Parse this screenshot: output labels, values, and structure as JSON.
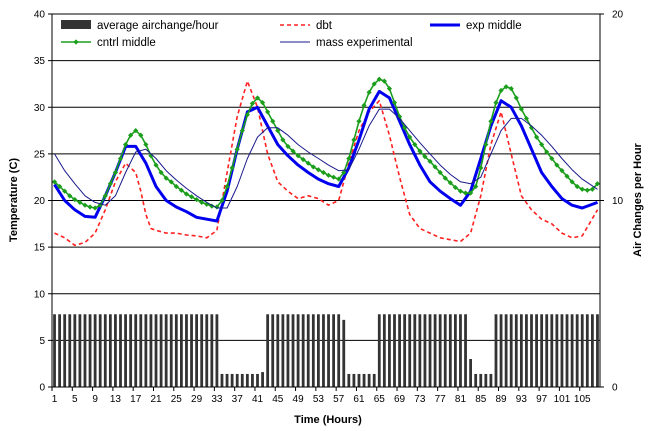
{
  "chart_data": {
    "type": "line",
    "xlabel": "Time (Hours)",
    "ylabel": "Temperature (C)",
    "y2label": "Air Changes per Hour",
    "xlim": [
      1,
      108
    ],
    "ylim": [
      0,
      40
    ],
    "y2lim": [
      0,
      20
    ],
    "y_ticks": [
      "0",
      "5",
      "10",
      "15",
      "20",
      "25",
      "30",
      "35",
      "40"
    ],
    "y2_ticks": [
      "0",
      "10",
      "20"
    ],
    "x_ticks": [
      "1",
      "5",
      "9",
      "13",
      "17",
      "21",
      "25",
      "29",
      "33",
      "37",
      "41",
      "45",
      "49",
      "53",
      "57",
      "61",
      "65",
      "69",
      "73",
      "77",
      "81",
      "85",
      "89",
      "93",
      "97",
      "101",
      "105"
    ],
    "grid": "horizontal at major temperature ticks",
    "legend_position": "top-left, inside plot",
    "series": [
      {
        "name": "average airchange/hour",
        "kind": "bar",
        "axis": "secondary",
        "color": "#333333",
        "x": [
          1,
          2,
          3,
          4,
          5,
          6,
          7,
          8,
          9,
          10,
          11,
          12,
          13,
          14,
          15,
          16,
          17,
          18,
          19,
          20,
          21,
          22,
          23,
          24,
          25,
          26,
          27,
          28,
          29,
          30,
          31,
          32,
          33,
          34,
          35,
          36,
          37,
          38,
          39,
          40,
          41,
          42,
          43,
          44,
          45,
          46,
          47,
          48,
          49,
          50,
          51,
          52,
          53,
          54,
          55,
          56,
          57,
          58,
          59,
          60,
          61,
          62,
          63,
          64,
          65,
          66,
          67,
          68,
          69,
          70,
          71,
          72,
          73,
          74,
          75,
          76,
          77,
          78,
          79,
          80,
          81,
          82,
          83,
          84,
          85,
          86,
          87,
          88,
          89,
          90,
          91,
          92,
          93,
          94,
          95,
          96,
          97,
          98,
          99,
          100,
          101,
          102,
          103,
          104,
          105,
          106,
          107,
          108
        ],
        "values": [
          3.9,
          3.9,
          3.9,
          3.9,
          3.9,
          3.9,
          3.9,
          3.9,
          3.9,
          3.9,
          3.9,
          3.9,
          3.9,
          3.9,
          3.9,
          3.9,
          3.9,
          3.9,
          3.9,
          3.9,
          3.9,
          3.9,
          3.9,
          3.9,
          3.9,
          3.9,
          3.9,
          3.9,
          3.9,
          3.9,
          3.9,
          3.9,
          3.9,
          0.7,
          0.7,
          0.7,
          0.7,
          0.7,
          0.7,
          0.7,
          0.7,
          0.8,
          3.9,
          3.9,
          3.9,
          3.9,
          3.9,
          3.9,
          3.9,
          3.9,
          3.9,
          3.9,
          3.9,
          3.9,
          3.9,
          3.9,
          3.9,
          3.6,
          0.7,
          0.7,
          0.7,
          0.7,
          0.7,
          0.7,
          3.9,
          3.9,
          3.9,
          3.9,
          3.9,
          3.9,
          3.9,
          3.9,
          3.9,
          3.9,
          3.9,
          3.9,
          3.9,
          3.9,
          3.9,
          3.9,
          3.9,
          3.9,
          1.5,
          0.7,
          0.7,
          0.7,
          0.7,
          3.9,
          3.9,
          3.9,
          3.9,
          3.9,
          3.9,
          3.9,
          3.9,
          3.9,
          3.9,
          3.9,
          3.9,
          3.9,
          3.9,
          3.9,
          3.9,
          3.9,
          3.9,
          3.9,
          3.9,
          3.9
        ]
      },
      {
        "name": "dbt",
        "kind": "line",
        "axis": "primary",
        "color": "#ff2020",
        "dash": "dashed",
        "x": [
          1,
          3,
          5,
          7,
          9,
          11,
          13,
          15,
          17,
          18,
          19,
          20,
          21,
          23,
          25,
          27,
          29,
          31,
          33,
          35,
          37,
          39,
          41,
          43,
          45,
          47,
          49,
          51,
          53,
          55,
          57,
          59,
          61,
          63,
          65,
          67,
          69,
          71,
          73,
          75,
          77,
          79,
          81,
          83,
          85,
          87,
          89,
          91,
          93,
          95,
          97,
          99,
          101,
          103,
          105,
          108
        ],
        "values": [
          16.5,
          16,
          15.2,
          15.5,
          16.5,
          19,
          22,
          24,
          23,
          21,
          18.5,
          17,
          16.8,
          16.5,
          16.5,
          16.3,
          16.2,
          16,
          16.8,
          23,
          29,
          32.8,
          30,
          25,
          22,
          21,
          20.2,
          20.5,
          20.2,
          19.5,
          20,
          24,
          27.5,
          29.5,
          30.7,
          27,
          22.5,
          18.5,
          17,
          16.5,
          16,
          15.8,
          15.6,
          16.5,
          20.5,
          26,
          29.5,
          25,
          20.5,
          19,
          18,
          17.5,
          16.5,
          16,
          16.2,
          19
        ]
      },
      {
        "name": "exp middle",
        "kind": "line",
        "axis": "primary",
        "color": "#0000ee",
        "width": "thick",
        "x": [
          1,
          3,
          5,
          7,
          9,
          11,
          13,
          15,
          17,
          19,
          21,
          23,
          25,
          27,
          29,
          31,
          33,
          35,
          37,
          39,
          41,
          43,
          45,
          47,
          49,
          51,
          53,
          55,
          57,
          59,
          61,
          63,
          65,
          67,
          69,
          71,
          73,
          75,
          77,
          79,
          81,
          83,
          85,
          87,
          89,
          91,
          93,
          95,
          97,
          99,
          101,
          103,
          105,
          108
        ],
        "values": [
          21.7,
          20,
          19,
          18.3,
          18.2,
          20.5,
          23,
          25.8,
          25.8,
          24,
          21.5,
          20,
          19.3,
          18.8,
          18.2,
          18,
          17.8,
          21,
          25.5,
          29.5,
          30,
          28,
          26,
          24.8,
          23.8,
          23,
          22.3,
          21.8,
          21.5,
          23.5,
          26.5,
          29.8,
          31.7,
          31,
          28.5,
          26,
          23.8,
          22,
          21,
          20.2,
          19.5,
          21,
          24.5,
          28,
          30.7,
          30,
          28,
          25.5,
          23,
          21.5,
          20.2,
          19.5,
          19.2,
          19.8
        ]
      },
      {
        "name": "cntrl middle",
        "kind": "line",
        "axis": "primary",
        "color": "#1b9e1b",
        "marker": "diamond",
        "x": [
          1,
          2,
          3,
          4,
          5,
          6,
          7,
          8,
          9,
          10,
          11,
          12,
          13,
          14,
          15,
          16,
          17,
          18,
          19,
          20,
          21,
          22,
          23,
          24,
          25,
          26,
          27,
          28,
          29,
          30,
          31,
          32,
          33,
          34,
          35,
          36,
          37,
          38,
          39,
          40,
          41,
          42,
          43,
          44,
          45,
          46,
          47,
          48,
          49,
          50,
          51,
          52,
          53,
          54,
          55,
          56,
          57,
          58,
          59,
          60,
          61,
          62,
          63,
          64,
          65,
          66,
          67,
          68,
          69,
          70,
          71,
          72,
          73,
          74,
          75,
          76,
          77,
          78,
          79,
          80,
          81,
          82,
          83,
          84,
          85,
          86,
          87,
          88,
          89,
          90,
          91,
          92,
          93,
          94,
          95,
          96,
          97,
          98,
          99,
          100,
          101,
          102,
          103,
          104,
          105,
          106,
          107,
          108
        ],
        "values": [
          22,
          21.5,
          21,
          20.5,
          20.1,
          19.8,
          19.5,
          19.3,
          19.2,
          19.5,
          20.5,
          21.8,
          23,
          24.5,
          26,
          27,
          27.5,
          27,
          26,
          24.8,
          23.8,
          23,
          22.4,
          22,
          21.5,
          21.1,
          20.7,
          20.4,
          20.1,
          19.8,
          19.6,
          19.4,
          19.3,
          20,
          21.5,
          23.5,
          25.5,
          27.5,
          29.2,
          30.4,
          31,
          30.5,
          29.5,
          28.5,
          27.5,
          26.5,
          25.8,
          25.3,
          24.8,
          24.4,
          24,
          23.6,
          23.3,
          23,
          22.7,
          22.5,
          22.3,
          23,
          24.5,
          26.5,
          28.5,
          30.2,
          31.6,
          32.5,
          33,
          32.8,
          32,
          30.5,
          29,
          27.8,
          26.8,
          26,
          25.3,
          24.7,
          24.2,
          23.6,
          23,
          22.4,
          21.9,
          21.4,
          21,
          20.8,
          20.8,
          21.5,
          23.5,
          26,
          28.5,
          30.5,
          31.8,
          32.2,
          32,
          31,
          29.8,
          28.8,
          27.8,
          26.8,
          26,
          25.2,
          24.5,
          23.8,
          23.2,
          22.6,
          22,
          21.5,
          21.2,
          21.1,
          21.2,
          21.8
        ]
      },
      {
        "name": "mass experimental",
        "kind": "line",
        "axis": "primary",
        "color": "#1a1a8c",
        "x": [
          1,
          3,
          5,
          7,
          9,
          11,
          13,
          15,
          17,
          19,
          21,
          23,
          25,
          27,
          29,
          31,
          33,
          35,
          37,
          39,
          41,
          43,
          45,
          47,
          49,
          51,
          53,
          55,
          57,
          59,
          61,
          63,
          65,
          67,
          69,
          71,
          73,
          75,
          77,
          79,
          81,
          83,
          85,
          87,
          89,
          91,
          93,
          95,
          97,
          99,
          101,
          103,
          105,
          108
        ],
        "values": [
          25,
          23.2,
          21.8,
          20.5,
          19.8,
          19.5,
          20.5,
          23,
          25.2,
          25.5,
          24.5,
          23.2,
          22.2,
          21.3,
          20.5,
          19.8,
          19.2,
          19.2,
          21.5,
          24.5,
          26.8,
          27.8,
          27.8,
          27,
          26,
          25.2,
          24.5,
          23.8,
          23.2,
          23.3,
          25.5,
          28,
          29.8,
          29.8,
          28.8,
          27.5,
          26.2,
          25,
          23.8,
          22.8,
          22,
          21.8,
          22.5,
          25,
          27.5,
          28.8,
          28.8,
          28,
          27,
          25.8,
          24.5,
          23.3,
          22.3,
          21.2
        ]
      }
    ]
  }
}
